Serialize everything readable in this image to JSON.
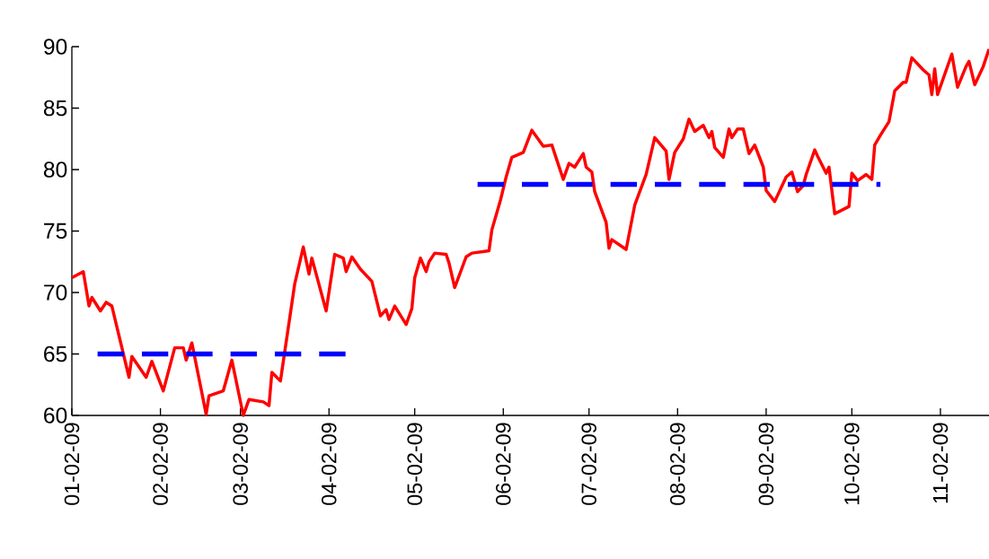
{
  "chart_data": {
    "type": "line",
    "xlim": [
      "2009-01-02",
      "2009-11-19"
    ],
    "ylim": [
      60,
      90
    ],
    "xticks": [
      {
        "value": "2009-01-02",
        "label": "01-02-09"
      },
      {
        "value": "2009-02-02",
        "label": "02-02-09"
      },
      {
        "value": "2009-03-02",
        "label": "03-02-09"
      },
      {
        "value": "2009-04-02",
        "label": "04-02-09"
      },
      {
        "value": "2009-05-02",
        "label": "05-02-09"
      },
      {
        "value": "2009-06-02",
        "label": "06-02-09"
      },
      {
        "value": "2009-07-02",
        "label": "07-02-09"
      },
      {
        "value": "2009-08-02",
        "label": "08-02-09"
      },
      {
        "value": "2009-09-02",
        "label": "09-02-09"
      },
      {
        "value": "2009-10-02",
        "label": "10-02-09"
      },
      {
        "value": "2009-11-02",
        "label": "11-02-09"
      }
    ],
    "yticks": [
      60,
      65,
      70,
      75,
      80,
      85,
      90
    ],
    "series": [
      {
        "color": "#ff0000",
        "line_style": "solid",
        "x": [
          "2009-01-02",
          "2009-01-06",
          "2009-01-08",
          "2009-01-09",
          "2009-01-12",
          "2009-01-14",
          "2009-01-16",
          "2009-01-22",
          "2009-01-23",
          "2009-01-28",
          "2009-01-30",
          "2009-02-03",
          "2009-02-07",
          "2009-02-10",
          "2009-02-11",
          "2009-02-13",
          "2009-02-18",
          "2009-02-19",
          "2009-02-24",
          "2009-02-27",
          "2009-03-03",
          "2009-03-05",
          "2009-03-10",
          "2009-03-12",
          "2009-03-13",
          "2009-03-16",
          "2009-03-21",
          "2009-03-24",
          "2009-03-26",
          "2009-03-27",
          "2009-04-01",
          "2009-04-04",
          "2009-04-07",
          "2009-04-08",
          "2009-04-10",
          "2009-04-13",
          "2009-04-17",
          "2009-04-20",
          "2009-04-22",
          "2009-04-23",
          "2009-04-25",
          "2009-04-29",
          "2009-05-01",
          "2009-05-02",
          "2009-05-04",
          "2009-05-06",
          "2009-05-07",
          "2009-05-09",
          "2009-05-13",
          "2009-05-14",
          "2009-05-16",
          "2009-05-20",
          "2009-05-22",
          "2009-05-28",
          "2009-05-29",
          "2009-06-01",
          "2009-06-03",
          "2009-06-05",
          "2009-06-09",
          "2009-06-12",
          "2009-06-16",
          "2009-06-19",
          "2009-06-23",
          "2009-06-25",
          "2009-06-27",
          "2009-06-30",
          "2009-07-01",
          "2009-07-03",
          "2009-07-04",
          "2009-07-08",
          "2009-07-09",
          "2009-07-10",
          "2009-07-15",
          "2009-07-18",
          "2009-07-22",
          "2009-07-25",
          "2009-07-29",
          "2009-07-30",
          "2009-08-01",
          "2009-08-04",
          "2009-08-06",
          "2009-08-08",
          "2009-08-11",
          "2009-08-13",
          "2009-08-14",
          "2009-08-15",
          "2009-08-18",
          "2009-08-20",
          "2009-08-21",
          "2009-08-23",
          "2009-08-25",
          "2009-08-27",
          "2009-08-29",
          "2009-09-01",
          "2009-09-02",
          "2009-09-05",
          "2009-09-09",
          "2009-09-11",
          "2009-09-13",
          "2009-09-15",
          "2009-09-16",
          "2009-09-19",
          "2009-09-20",
          "2009-09-23",
          "2009-09-24",
          "2009-09-26",
          "2009-10-01",
          "2009-10-02",
          "2009-10-04",
          "2009-10-07",
          "2009-10-09",
          "2009-10-10",
          "2009-10-12",
          "2009-10-15",
          "2009-10-17",
          "2009-10-20",
          "2009-10-21",
          "2009-10-23",
          "2009-10-27",
          "2009-10-29",
          "2009-10-30",
          "2009-10-31",
          "2009-11-01",
          "2009-11-06",
          "2009-11-08",
          "2009-11-11",
          "2009-11-12",
          "2009-11-14",
          "2009-11-17",
          "2009-11-19"
        ],
        "values": [
          71.2,
          71.7,
          68.9,
          69.6,
          68.5,
          69.2,
          68.9,
          63.1,
          64.8,
          63.1,
          64.4,
          62.0,
          65.5,
          65.5,
          64.5,
          65.9,
          60.1,
          61.6,
          62.0,
          64.5,
          60.0,
          61.3,
          61.1,
          60.8,
          63.5,
          62.8,
          70.7,
          73.7,
          71.5,
          72.8,
          68.5,
          73.1,
          72.8,
          71.7,
          72.9,
          71.9,
          70.9,
          68.1,
          68.6,
          67.8,
          68.9,
          67.4,
          68.7,
          71.2,
          72.8,
          71.7,
          72.5,
          73.2,
          73.1,
          72.4,
          70.4,
          72.9,
          73.2,
          73.4,
          75.1,
          77.5,
          79.4,
          81.0,
          81.4,
          83.2,
          81.9,
          82.0,
          79.2,
          80.5,
          80.2,
          81.3,
          80.2,
          79.8,
          78.2,
          75.7,
          73.6,
          74.3,
          73.5,
          77.1,
          79.6,
          82.6,
          81.5,
          79.2,
          81.4,
          82.5,
          84.1,
          83.1,
          83.6,
          82.6,
          83.1,
          81.8,
          81.0,
          83.3,
          82.6,
          83.3,
          83.3,
          81.3,
          82.0,
          80.2,
          78.3,
          77.4,
          79.4,
          79.8,
          78.2,
          78.7,
          79.6,
          81.6,
          81.1,
          79.7,
          80.2,
          76.4,
          77.0,
          79.7,
          79.1,
          79.6,
          79.2,
          82.0,
          82.8,
          83.9,
          86.4,
          87.1,
          87.1,
          89.1,
          88.1,
          87.7,
          86.1,
          88.2,
          86.1,
          89.4,
          86.7,
          88.4,
          88.8,
          86.9,
          88.4,
          89.8
        ]
      },
      {
        "color": "#0000ff",
        "line_style": "dashed",
        "x": [
          "2009-01-11",
          "2009-04-08"
        ],
        "values": [
          65,
          65
        ]
      },
      {
        "color": "#0000ff",
        "line_style": "dashed",
        "x": [
          "2009-05-24",
          "2009-10-12"
        ],
        "values": [
          78.8,
          78.8
        ]
      }
    ]
  }
}
